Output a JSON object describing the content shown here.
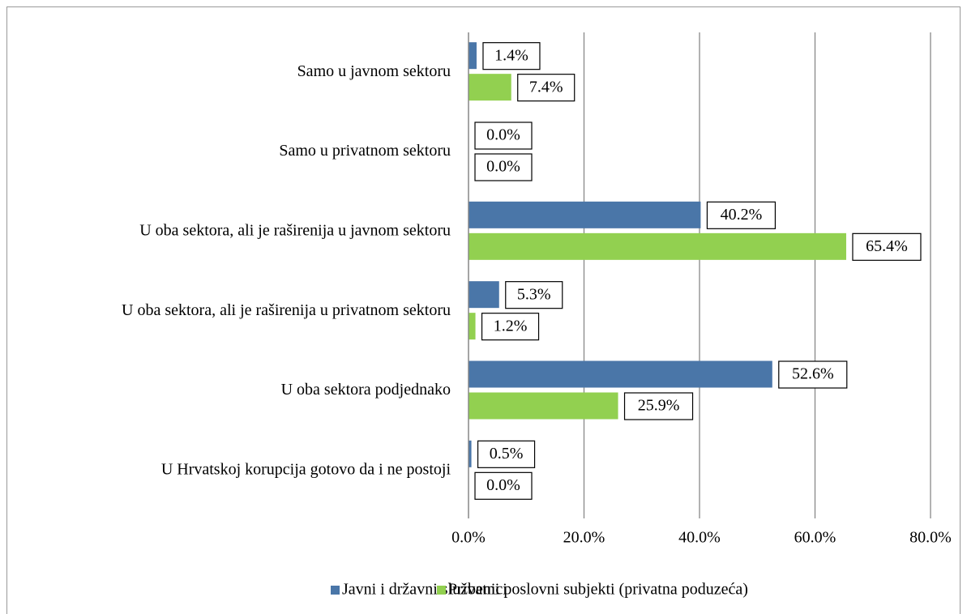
{
  "chart_data": {
    "type": "hbar",
    "categories": [
      "Samo u javnom sektoru",
      "Samo u privatnom sektoru",
      "U oba sektora, ali je raširenija u javnom sektoru",
      "U oba sektora, ali je raširenija u privatnom sektoru",
      "U oba sektora podjednako",
      "U Hrvatskoj korupcija gotovo da i ne postoji"
    ],
    "series": [
      {
        "name": "Javni i državni službenici",
        "color": "#4a76a8",
        "values": [
          1.4,
          0.0,
          40.2,
          5.3,
          52.6,
          0.5
        ],
        "value_labels": [
          "1.4%",
          "0.0%",
          "40.2%",
          "5.3%",
          "52.6%",
          "0.5%"
        ]
      },
      {
        "name": "Privatni poslovni subjekti (privatna poduzeća)",
        "color": "#92d050",
        "values": [
          7.4,
          0.0,
          65.4,
          1.2,
          25.9,
          0.0
        ],
        "value_labels": [
          "7.4%",
          "0.0%",
          "65.4%",
          "1.2%",
          "25.9%",
          "0.0%"
        ]
      }
    ],
    "xlim": [
      0,
      80
    ],
    "xticks": [
      {
        "value": 0,
        "label": "0.0%"
      },
      {
        "value": 20,
        "label": "20.0%"
      },
      {
        "value": 40,
        "label": "40.0%"
      },
      {
        "value": 60,
        "label": "60.0%"
      },
      {
        "value": 80,
        "label": "80.0%"
      }
    ],
    "grid": true,
    "legend": "bottom"
  }
}
